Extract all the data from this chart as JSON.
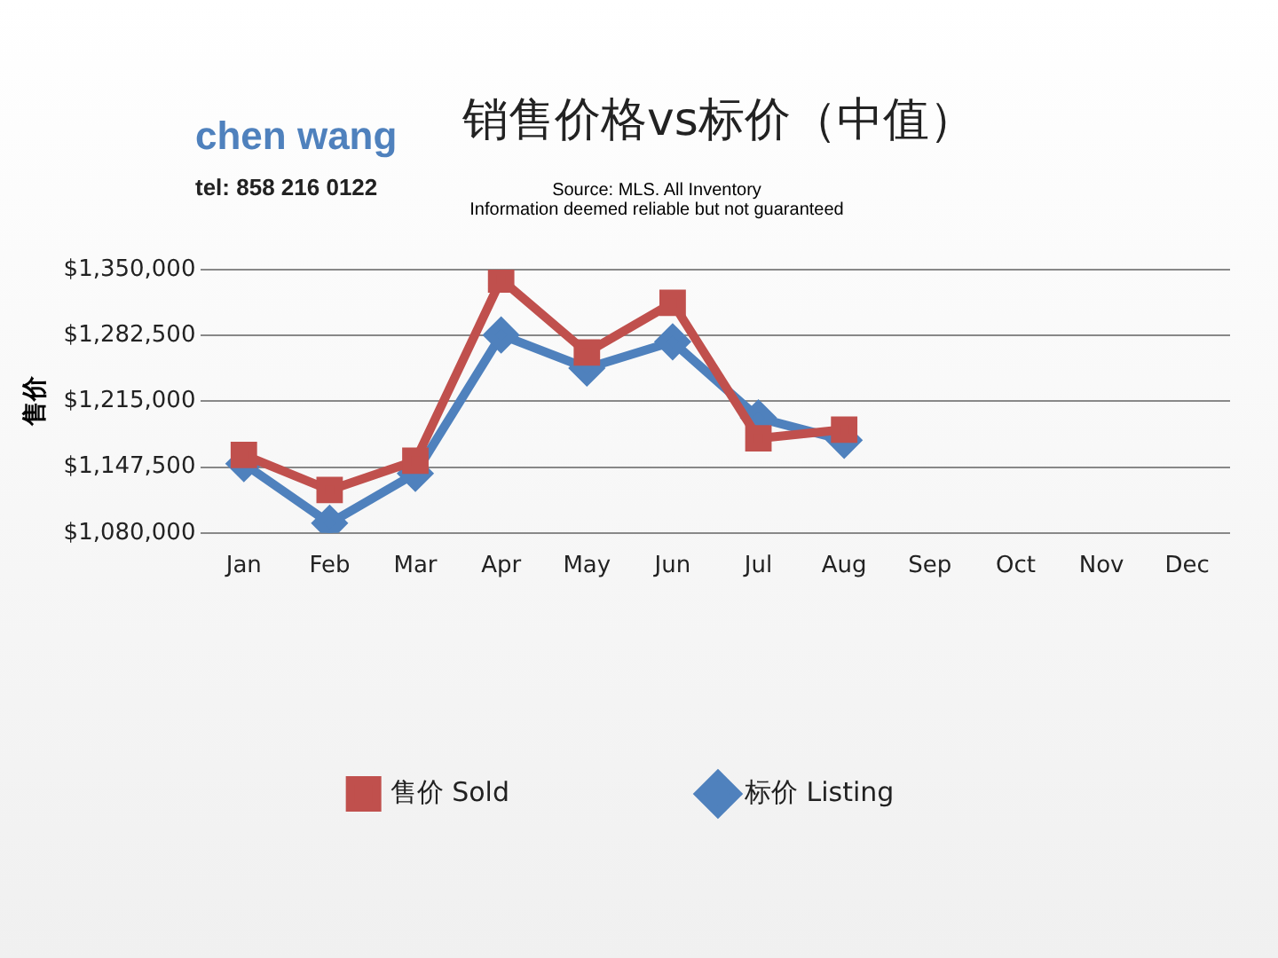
{
  "chart_data": {
    "type": "line",
    "title": "销售价格vs标价（中值）",
    "ylabel": "售价",
    "annotations": [
      "chen wang",
      "tel: 858 216 0122",
      "Source: MLS. All Inventory\nInformation deemed reliable but not guaranteed"
    ],
    "categories": [
      "Jan",
      "Feb",
      "Mar",
      "Apr",
      "May",
      "Jun",
      "Jul",
      "Aug",
      "Sep",
      "Oct",
      "Nov",
      "Dec"
    ],
    "series": [
      {
        "name": "标价 Listing",
        "color": "#4f81bd",
        "marker": "diamond",
        "values": [
          1151000,
          1090000,
          1141000,
          1283000,
          1249000,
          1276000,
          1198000,
          1175000,
          null,
          null,
          null,
          null
        ]
      },
      {
        "name": "售价 Sold",
        "color": "#c0504d",
        "marker": "square",
        "values": [
          1160000,
          1124000,
          1154000,
          1340000,
          1265000,
          1316000,
          1177000,
          1186000,
          null,
          null,
          null,
          null
        ]
      }
    ],
    "ylim": [
      1080000,
      1350000
    ],
    "yticks": [
      {
        "value": 1080000,
        "label": "$1,080,000"
      },
      {
        "value": 1147500,
        "label": "$1,147,500"
      },
      {
        "value": 1215000,
        "label": "$1,215,000"
      },
      {
        "value": 1282500,
        "label": "$1,282,500"
      },
      {
        "value": 1350000,
        "label": "$1,350,000"
      }
    ],
    "grid": "y",
    "legend": "bottom",
    "line_style": "solid"
  }
}
